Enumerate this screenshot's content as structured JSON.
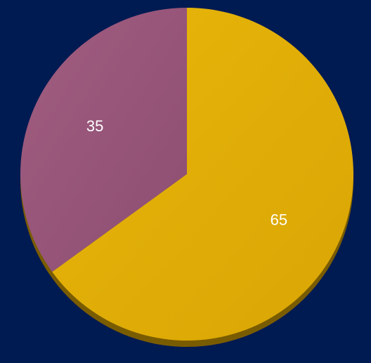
{
  "chart_data": {
    "type": "pie",
    "title": "",
    "categories": [
      "",
      ""
    ],
    "values": [
      35,
      65
    ],
    "data_labels": [
      "35",
      "65"
    ],
    "colors": [
      "#9b5579",
      "#e3b00d"
    ],
    "shadow_color": "#7a5c00",
    "start_angle_deg": 0,
    "direction": "counterclockwise-from-top",
    "legend": "none"
  },
  "background_color": "#001a52"
}
